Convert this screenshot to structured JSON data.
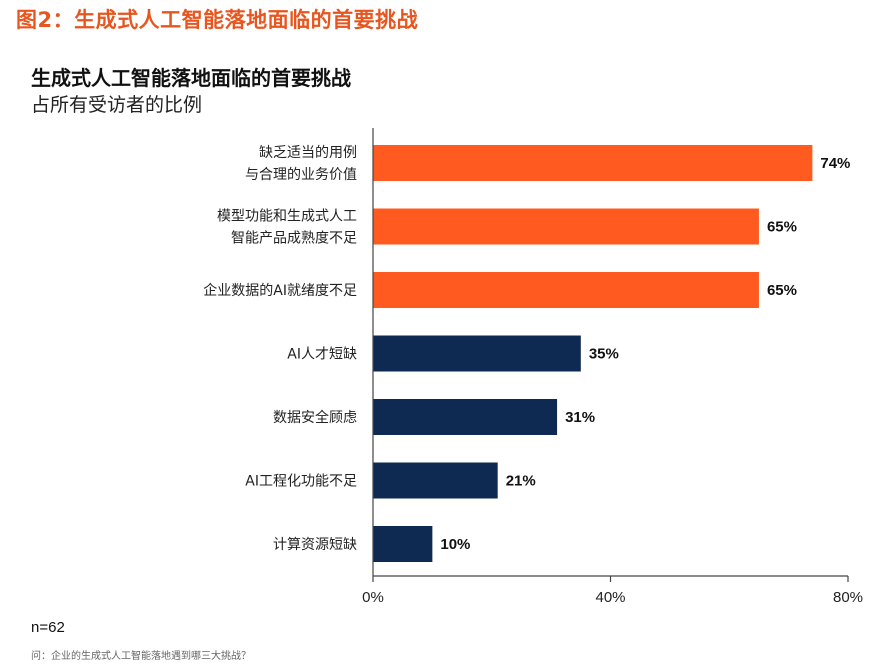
{
  "figure_title": "图2：生成式人工智能落地面临的首要挑战",
  "footer": {
    "sample": "n=62",
    "question": "问：企业的生成式人工智能落地遇到哪三大挑战？"
  },
  "colors": {
    "accent": "#ff5a1f",
    "navy": "#0e2a52",
    "title": "#e8551e"
  },
  "chart_data": {
    "type": "bar",
    "orientation": "horizontal",
    "title": "生成式人工智能落地面临的首要挑战",
    "subtitle": "占所有受访者的比例",
    "categories": [
      [
        "缺乏适当的用例",
        "与合理的业务价值"
      ],
      [
        "模型功能和生成式人工",
        "智能产品成熟度不足"
      ],
      [
        "企业数据的AI就绪度不足"
      ],
      [
        "AI人才短缺"
      ],
      [
        "数据安全顾虑"
      ],
      [
        "AI工程化功能不足"
      ],
      [
        "计算资源短缺"
      ]
    ],
    "values": [
      74,
      65,
      65,
      35,
      31,
      21,
      10
    ],
    "value_labels": [
      "74%",
      "65%",
      "65%",
      "35%",
      "31%",
      "21%",
      "10%"
    ],
    "bar_colors": [
      "#ff5a1f",
      "#ff5a1f",
      "#ff5a1f",
      "#0e2a52",
      "#0e2a52",
      "#0e2a52",
      "#0e2a52"
    ],
    "xlim": [
      0,
      80
    ],
    "xticks": [
      0,
      40,
      80
    ],
    "xtick_labels": [
      "0%",
      "40%",
      "80%"
    ],
    "grid": false,
    "legend": "none"
  }
}
